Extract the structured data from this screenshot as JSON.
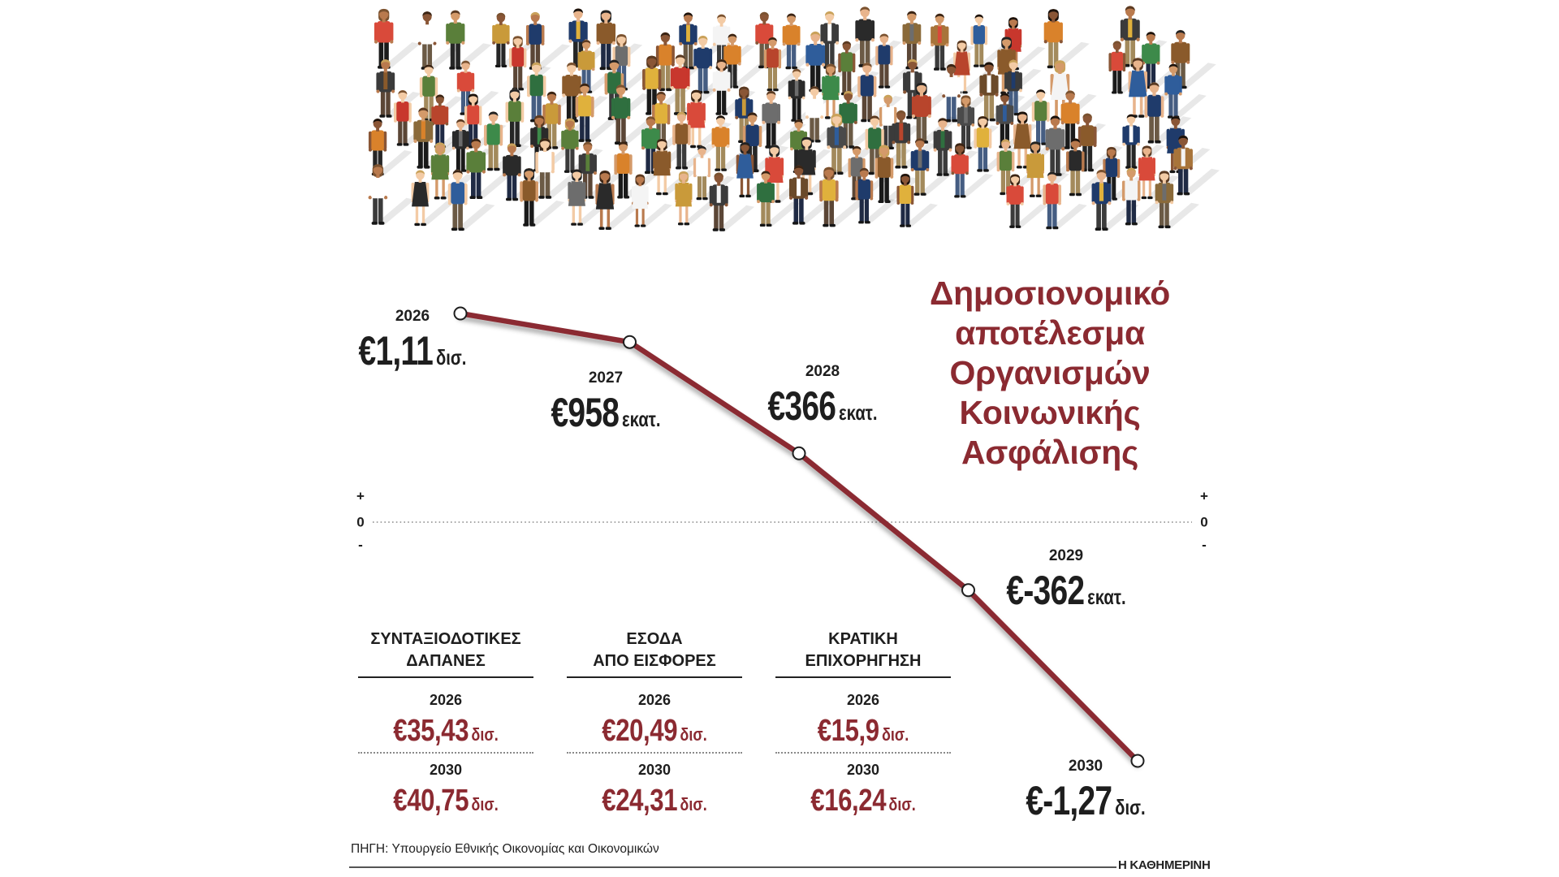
{
  "colors": {
    "accent": "#8b2a31",
    "line": "#8b2a31",
    "point_fill": "#ffffff"
  },
  "chart_data": {
    "type": "line",
    "title": "Δημοσιονομικό αποτέλεσμα Οργανισμών Κοινωνικής Ασφάλισης",
    "x": [
      "2026",
      "2027",
      "2028",
      "2029",
      "2030"
    ],
    "y": [
      1.11,
      0.958,
      0.366,
      -0.362,
      -1.27
    ],
    "data_labels": [
      {
        "year": "2026",
        "amount": "€1,11",
        "unit": "δισ."
      },
      {
        "year": "2027",
        "amount": "€958",
        "unit": "εκατ."
      },
      {
        "year": "2028",
        "amount": "€366",
        "unit": "εκατ."
      },
      {
        "year": "2029",
        "amount": "€-362",
        "unit": "εκατ."
      },
      {
        "year": "2030",
        "amount": "€-1,27",
        "unit": "δισ."
      }
    ],
    "axis_markers": {
      "positive": "+",
      "zero": "0",
      "negative": "-"
    },
    "zero_line": true,
    "grid": false
  },
  "summary_table": {
    "columns": [
      {
        "header": [
          "ΣΥΝΤΑΞΙΟΔΟΤΙΚΕΣ",
          "ΔΑΠΑΝΕΣ"
        ],
        "rows": [
          {
            "year": "2026",
            "amount": "€35,43",
            "unit": "δισ."
          },
          {
            "year": "2030",
            "amount": "€40,75",
            "unit": "δισ."
          }
        ]
      },
      {
        "header": [
          "ΕΣΟΔΑ",
          "ΑΠΟ ΕΙΣΦΟΡΕΣ"
        ],
        "rows": [
          {
            "year": "2026",
            "amount": "€20,49",
            "unit": "δισ."
          },
          {
            "year": "2030",
            "amount": "€24,31",
            "unit": "δισ."
          }
        ]
      },
      {
        "header": [
          "ΚΡΑΤΙΚΗ",
          "ΕΠΙΧΟΡΗΓΗΣΗ"
        ],
        "rows": [
          {
            "year": "2026",
            "amount": "€15,9",
            "unit": "δισ."
          },
          {
            "year": "2030",
            "amount": "€16,24",
            "unit": "δισ."
          }
        ]
      }
    ]
  },
  "footer": {
    "source": "ΠΗΓΗ: Υπουργείο Εθνικής Οικονομίας και Οικονομικών",
    "publisher": "Η ΚΑΘΗΜΕΡΙΝΗ"
  }
}
